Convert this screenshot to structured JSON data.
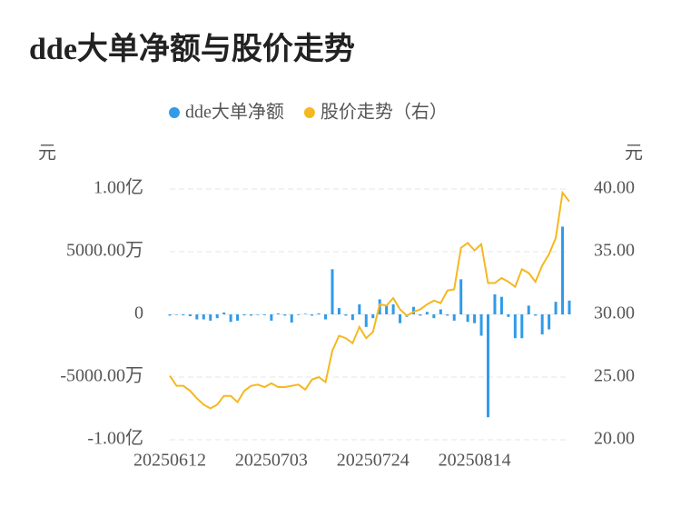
{
  "chart_data": {
    "type": "bar-line",
    "title": "dde大单净额与股价走势",
    "y_label": "元",
    "y2_label": "元",
    "categories": [
      "20250612",
      null,
      null,
      null,
      null,
      null,
      null,
      null,
      null,
      null,
      null,
      null,
      null,
      null,
      null,
      "20250703",
      null,
      null,
      null,
      null,
      null,
      null,
      null,
      null,
      null,
      null,
      null,
      null,
      null,
      null,
      "20250724",
      null,
      null,
      null,
      null,
      null,
      null,
      null,
      null,
      null,
      null,
      null,
      null,
      null,
      null,
      "20250814",
      null,
      null,
      null,
      null,
      null,
      null,
      null,
      null,
      null,
      null,
      null,
      null,
      null,
      null
    ],
    "series": [
      {
        "name": "dde大单净额",
        "type": "bar",
        "color": "#2f9bea",
        "values": [
          -100,
          -50,
          -80,
          -150,
          -400,
          -400,
          -500,
          -300,
          150,
          -600,
          -500,
          -80,
          -100,
          -50,
          -60,
          -500,
          80,
          -100,
          -650,
          -50,
          50,
          -100,
          80,
          -400,
          3600,
          500,
          -100,
          -450,
          800,
          -1000,
          -300,
          1200,
          700,
          800,
          -700,
          -200,
          600,
          -100,
          200,
          -300,
          400,
          -100,
          -500,
          2800,
          -600,
          -700,
          -1700,
          -8200,
          1600,
          1400,
          -200,
          -1900,
          -1900,
          700,
          -100,
          -1600,
          -1200,
          1000,
          7000,
          1100
        ]
      },
      {
        "name": "股价走势（右）",
        "type": "line",
        "axis": "y2",
        "color": "#f5b820",
        "values": [
          25.1,
          24.3,
          24.3,
          23.9,
          23.3,
          22.8,
          22.5,
          22.8,
          23.5,
          23.5,
          23.0,
          23.9,
          24.3,
          24.4,
          24.2,
          24.5,
          24.2,
          24.2,
          24.3,
          24.4,
          24.0,
          24.8,
          25.0,
          24.6,
          27.1,
          28.3,
          28.1,
          27.7,
          29.0,
          28.1,
          28.6,
          30.8,
          30.7,
          31.3,
          30.4,
          29.9,
          30.2,
          30.4,
          30.8,
          31.1,
          30.9,
          31.9,
          32.0,
          35.3,
          35.7,
          35.1,
          35.6,
          32.5,
          32.5,
          32.9,
          32.6,
          32.2,
          33.6,
          33.3,
          32.6,
          33.9,
          34.8,
          36.1,
          39.7,
          39.0
        ]
      }
    ],
    "ylim": [
      -10000,
      10000
    ],
    "yticks": [
      {
        "value": -10000,
        "label": "-1.00亿"
      },
      {
        "value": -5000,
        "label": "-5000.00万"
      },
      0,
      {
        "value": 5000,
        "label": "5000.00万"
      },
      {
        "value": 10000,
        "label": "1.00亿"
      }
    ],
    "y2lim": [
      20,
      40
    ],
    "y2ticks": [
      {
        "value": 20,
        "label": "20.00"
      },
      {
        "value": 25,
        "label": "25.00"
      },
      {
        "value": 30,
        "label": "30.00"
      },
      {
        "value": 35,
        "label": "35.00"
      },
      {
        "value": 40,
        "label": "40.00"
      }
    ],
    "grid": true
  }
}
